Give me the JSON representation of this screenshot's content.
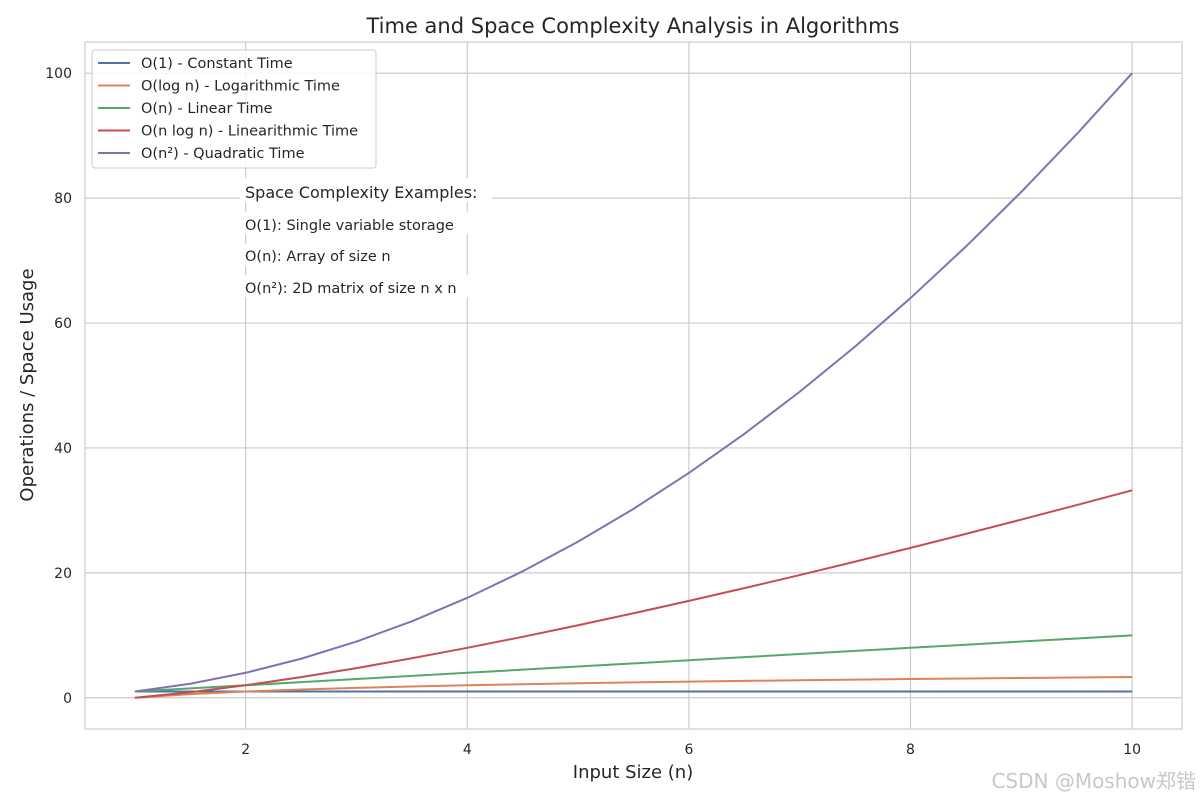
{
  "chart_data": {
    "type": "line",
    "title": "Time and Space Complexity Analysis in Algorithms",
    "xlabel": "Input Size (n)",
    "ylabel": "Operations / Space Usage",
    "xlim": [
      0.55,
      10.45
    ],
    "ylim": [
      -5,
      105
    ],
    "xticks": [
      2,
      4,
      6,
      8,
      10
    ],
    "yticks": [
      0,
      20,
      40,
      60,
      80,
      100
    ],
    "grid": true,
    "legend_position": "top-left",
    "x": [
      1,
      1.5,
      2,
      2.5,
      3,
      3.5,
      4,
      4.5,
      5,
      5.5,
      6,
      6.5,
      7,
      7.5,
      8,
      8.5,
      9,
      9.5,
      10
    ],
    "series": [
      {
        "name": "O(1) - Constant Time",
        "color": "#4c72b0",
        "values": [
          1,
          1,
          1,
          1,
          1,
          1,
          1,
          1,
          1,
          1,
          1,
          1,
          1,
          1,
          1,
          1,
          1,
          1,
          1
        ]
      },
      {
        "name": "O(log n) - Logarithmic Time",
        "color": "#dd8452",
        "values": [
          0,
          0.58,
          1.0,
          1.32,
          1.58,
          1.81,
          2.0,
          2.17,
          2.32,
          2.46,
          2.58,
          2.7,
          2.81,
          2.91,
          3.0,
          3.09,
          3.17,
          3.25,
          3.32
        ]
      },
      {
        "name": "O(n) - Linear Time",
        "color": "#55a868",
        "values": [
          1,
          1.5,
          2,
          2.5,
          3,
          3.5,
          4,
          4.5,
          5,
          5.5,
          6,
          6.5,
          7,
          7.5,
          8,
          8.5,
          9,
          9.5,
          10
        ]
      },
      {
        "name": "O(n log n) - Linearithmic Time",
        "color": "#c44e52",
        "values": [
          0,
          0.88,
          2.0,
          3.3,
          4.75,
          6.33,
          8.0,
          9.76,
          11.61,
          13.53,
          15.51,
          17.55,
          19.65,
          21.8,
          24.0,
          26.24,
          28.53,
          30.86,
          33.22
        ]
      },
      {
        "name": "O(n²) - Quadratic Time",
        "color": "#8172b3",
        "values": [
          1,
          2.25,
          4,
          6.25,
          9,
          12.25,
          16,
          20.25,
          25,
          30.25,
          36,
          42.25,
          49,
          56.25,
          64,
          72.25,
          81,
          90.25,
          100
        ]
      }
    ],
    "annotations": {
      "heading": "Space Complexity Examples:",
      "lines": [
        "O(1): Single variable storage",
        "O(n): Array of size n",
        "O(n²): 2D matrix of size n x n"
      ]
    }
  },
  "watermark": "CSDN @Moshow郑锴",
  "colors": {
    "grid": "#cccccc",
    "frame": "#cccccc",
    "text": "#262626"
  }
}
